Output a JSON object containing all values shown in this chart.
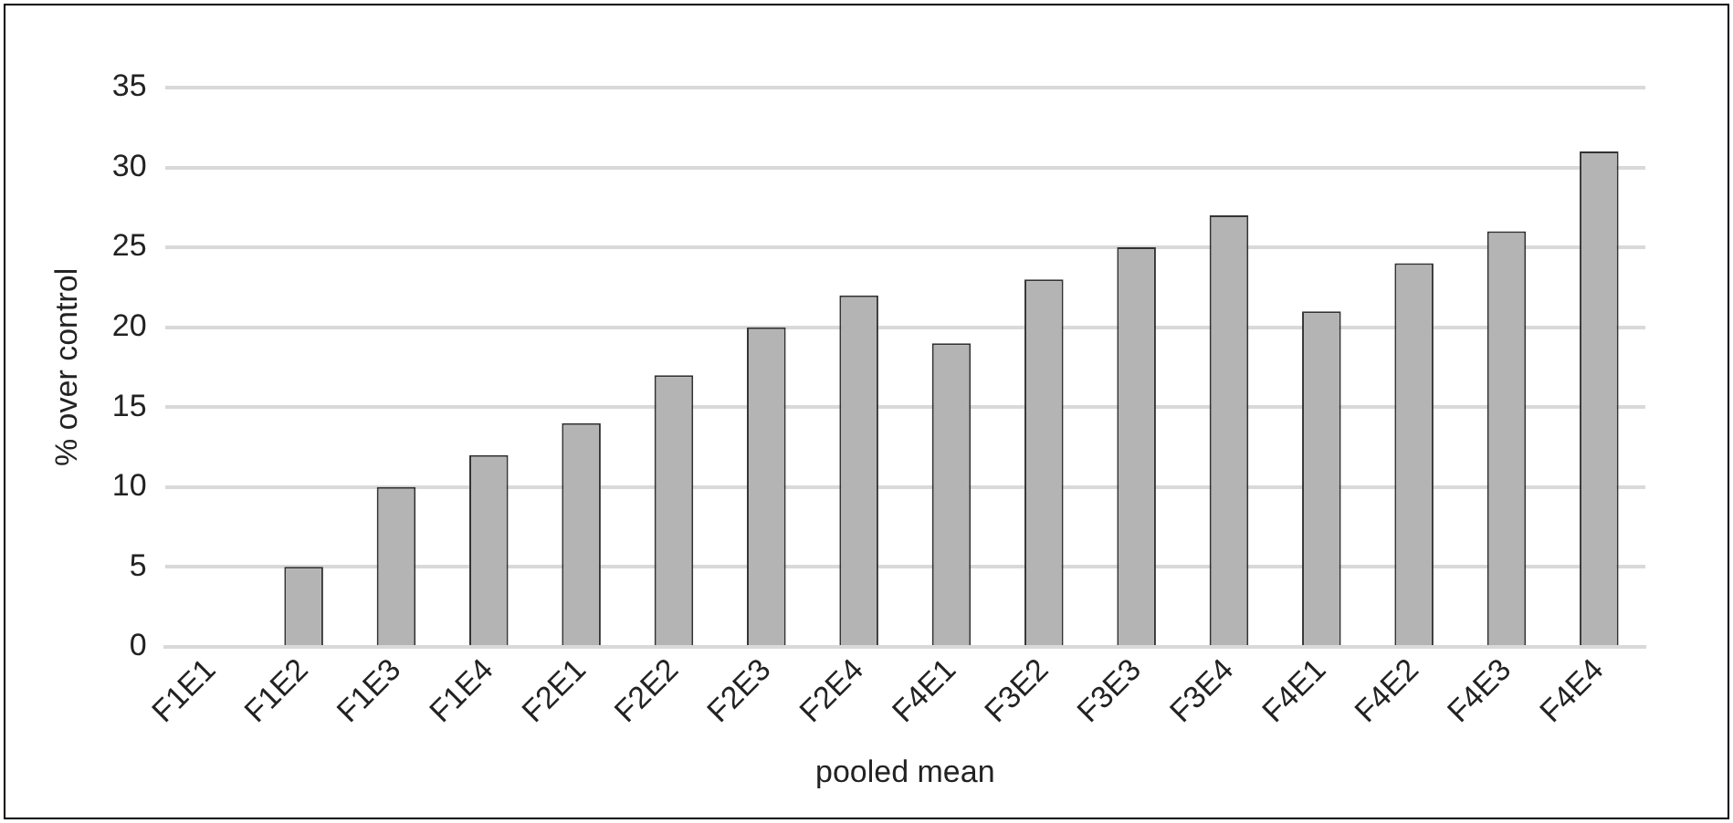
{
  "chart_data": {
    "type": "bar",
    "xlabel": "pooled mean",
    "ylabel": "% over control",
    "categories": [
      "F1E1",
      "F1E2",
      "F1E3",
      "F1E4",
      "F2E1",
      "F2E2",
      "F2E3",
      "F2E4",
      "F4E1",
      "F3E2",
      "F3E3",
      "F3E4",
      "F4E1",
      "F4E2",
      "F4E3",
      "F4E4"
    ],
    "values": [
      0,
      5,
      10,
      12,
      14,
      17,
      20,
      22,
      19,
      23,
      25,
      27,
      21,
      24,
      26,
      31
    ],
    "color": "#b4b4b4",
    "ylim": [
      0,
      35
    ],
    "yticks": [
      0,
      5,
      10,
      15,
      20,
      25,
      30,
      35
    ],
    "grid": "y"
  }
}
